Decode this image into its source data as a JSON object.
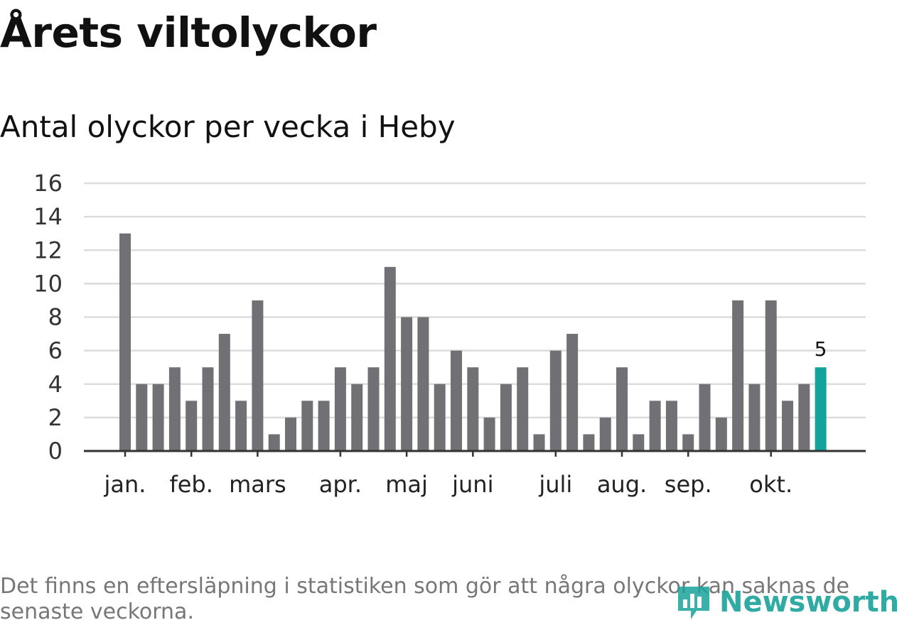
{
  "title": "Årets viltolyckor",
  "subtitle": "Antal olyckor per vecka i Heby",
  "footnote": "Det finns en eftersläpning i statistiken som gör att några olyckor kan saknas de senaste veckorna.",
  "logo": {
    "text": "Newsworthy",
    "icon": "newsworthy-logo-icon"
  },
  "colors": {
    "bar": "#717075",
    "highlight": "#14a39a",
    "grid": "#dcdcdc",
    "axis": "#333333",
    "logo": "#1aa39a"
  },
  "chart_data": {
    "type": "bar",
    "title": "Antal olyckor per vecka i Heby",
    "xlabel": "",
    "ylabel": "",
    "ylim": [
      0,
      16
    ],
    "yticks": [
      0,
      2,
      4,
      6,
      8,
      10,
      12,
      14,
      16
    ],
    "grid": true,
    "weeks": [
      1,
      2,
      3,
      4,
      5,
      6,
      7,
      8,
      9,
      10,
      11,
      12,
      13,
      14,
      15,
      16,
      17,
      18,
      19,
      20,
      21,
      22,
      23,
      24,
      25,
      26,
      27,
      28,
      29,
      30,
      31,
      32,
      33,
      34,
      35,
      36,
      37,
      38,
      39,
      40,
      41,
      42,
      43
    ],
    "values": [
      13,
      4,
      4,
      5,
      3,
      5,
      7,
      3,
      9,
      1,
      2,
      3,
      3,
      5,
      4,
      5,
      11,
      8,
      8,
      4,
      6,
      5,
      2,
      4,
      5,
      1,
      6,
      7,
      1,
      2,
      5,
      1,
      3,
      3,
      1,
      4,
      2,
      9,
      4,
      9,
      3,
      4,
      5
    ],
    "highlight_index": 42,
    "highlight_label": "5",
    "month_ticks": [
      {
        "label": "jan.",
        "week": 1
      },
      {
        "label": "feb.",
        "week": 5
      },
      {
        "label": "mars",
        "week": 9
      },
      {
        "label": "apr.",
        "week": 14
      },
      {
        "label": "maj",
        "week": 18
      },
      {
        "label": "juni",
        "week": 22
      },
      {
        "label": "juli",
        "week": 27
      },
      {
        "label": "aug.",
        "week": 31
      },
      {
        "label": "sep.",
        "week": 35
      },
      {
        "label": "okt.",
        "week": 40
      }
    ]
  }
}
